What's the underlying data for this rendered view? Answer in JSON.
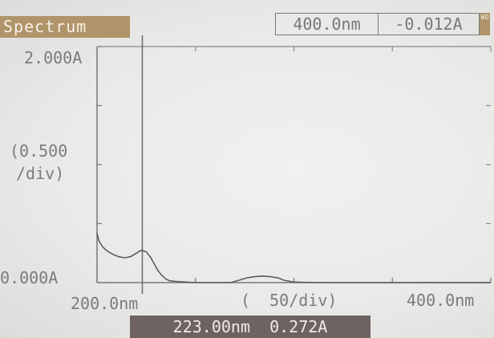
{
  "header": {
    "title": "Spectrum",
    "wavelength": "400.0nm",
    "absorbance": "-0.012A",
    "mini_label": "WO"
  },
  "y_axis": {
    "max_label": "2.000A",
    "scale_label_1": "(0.500",
    "scale_label_2": "/div)",
    "min_label": "0.000A"
  },
  "x_axis": {
    "min_label": "200.0nm",
    "scale_label": "(  50/div)",
    "max_label": "400.0nm"
  },
  "cursor_readout": "223.00nm  0.272A",
  "colors": {
    "background": "#e9e9e7",
    "title_bg": "#b0946a",
    "readout_bg": "#6e6263",
    "trace": "#5c5c5c"
  },
  "chart_data": {
    "type": "line",
    "title": "Spectrum",
    "xlabel": "(  50/div)",
    "ylabel": "(0.500 /div)",
    "xlim": [
      200,
      400
    ],
    "ylim": [
      0,
      2
    ],
    "grid": false,
    "cursor": {
      "x": 223.0,
      "y": 0.272
    },
    "series": [
      {
        "x": [
          200,
          201,
          203,
          205,
          208,
          211,
          214,
          217,
          220,
          222,
          223,
          225,
          227,
          229,
          231,
          233,
          235,
          237,
          240,
          245,
          250,
          255,
          262,
          268,
          272,
          276,
          280,
          284,
          288,
          292,
          295,
          300,
          310,
          320,
          340,
          360,
          380,
          400
        ],
        "y": [
          0.42,
          0.35,
          0.3,
          0.27,
          0.24,
          0.22,
          0.21,
          0.22,
          0.25,
          0.27,
          0.272,
          0.26,
          0.22,
          0.16,
          0.1,
          0.06,
          0.03,
          0.015,
          0.01,
          0.005,
          0.0,
          0.0,
          0.0,
          0.0,
          0.02,
          0.04,
          0.05,
          0.055,
          0.05,
          0.04,
          0.02,
          0.005,
          0.0,
          0.0,
          0.0,
          0.0,
          0.0,
          0.0
        ]
      }
    ]
  }
}
